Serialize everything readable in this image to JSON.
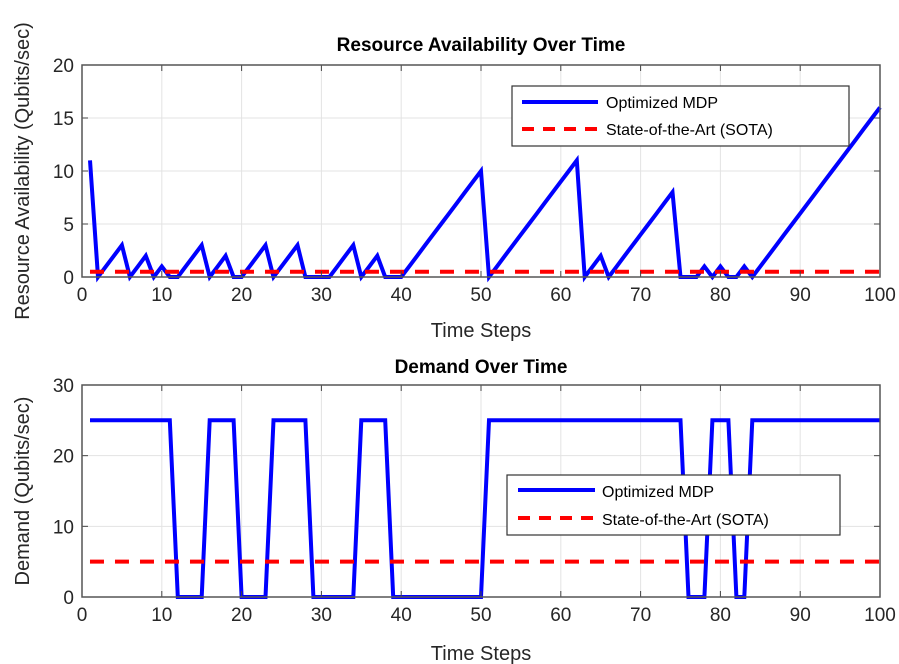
{
  "chart_data": [
    {
      "type": "line",
      "title": "Resource Availability Over Time",
      "xlabel": "Time Steps",
      "ylabel": "Resource Availability (Qubits/sec)",
      "xlim": [
        0,
        100
      ],
      "ylim": [
        0,
        20
      ],
      "xticks": [
        0,
        10,
        20,
        30,
        40,
        50,
        60,
        70,
        80,
        90,
        100
      ],
      "yticks": [
        0,
        5,
        10,
        15,
        20
      ],
      "grid": true,
      "legend_placement": "top-right",
      "x": [
        1,
        2,
        3,
        4,
        5,
        6,
        7,
        8,
        9,
        10,
        11,
        12,
        13,
        14,
        15,
        16,
        17,
        18,
        19,
        20,
        21,
        22,
        23,
        24,
        25,
        26,
        27,
        28,
        29,
        30,
        31,
        32,
        33,
        34,
        35,
        36,
        37,
        38,
        39,
        40,
        41,
        42,
        43,
        44,
        45,
        46,
        47,
        48,
        49,
        50,
        51,
        52,
        53,
        54,
        55,
        56,
        57,
        58,
        59,
        60,
        61,
        62,
        63,
        64,
        65,
        66,
        67,
        68,
        69,
        70,
        71,
        72,
        73,
        74,
        75,
        76,
        77,
        78,
        79,
        80,
        81,
        82,
        83,
        84,
        85,
        86,
        87,
        88,
        89,
        90,
        91,
        92,
        93,
        94,
        95,
        96,
        97,
        98,
        99,
        100
      ],
      "series": [
        {
          "name": "Optimized MDP",
          "color": "#0000ff",
          "style": "solid",
          "values": [
            11,
            0,
            1,
            2,
            3,
            0,
            1,
            2,
            0,
            1,
            0,
            0,
            1,
            2,
            3,
            0,
            1,
            2,
            0,
            0,
            1,
            2,
            3,
            0,
            1,
            2,
            3,
            0,
            0,
            0,
            0,
            1,
            2,
            3,
            0,
            1,
            2,
            0,
            0,
            0,
            1,
            2,
            3,
            4,
            5,
            6,
            7,
            8,
            9,
            10,
            0,
            1,
            2,
            3,
            4,
            5,
            6,
            7,
            8,
            9,
            10,
            11,
            0,
            1,
            2,
            0,
            1,
            2,
            3,
            4,
            5,
            6,
            7,
            8,
            0,
            0,
            0,
            1,
            0,
            1,
            0,
            0,
            1,
            0,
            1,
            2,
            3,
            4,
            5,
            6,
            7,
            8,
            9,
            10,
            11,
            12,
            13,
            14,
            15,
            16
          ]
        },
        {
          "name": "State-of-the-Art (SOTA)",
          "color": "#ff0000",
          "style": "dashed",
          "constant": 0.5
        }
      ]
    },
    {
      "type": "line",
      "title": "Demand Over Time",
      "xlabel": "Time Steps",
      "ylabel": "Demand (Qubits/sec)",
      "xlim": [
        0,
        100
      ],
      "ylim": [
        0,
        30
      ],
      "xticks": [
        0,
        10,
        20,
        30,
        40,
        50,
        60,
        70,
        80,
        90,
        100
      ],
      "yticks": [
        0,
        10,
        20,
        30
      ],
      "grid": true,
      "legend_placement": "center-right",
      "x": [
        1,
        2,
        3,
        4,
        5,
        6,
        7,
        8,
        9,
        10,
        11,
        12,
        13,
        14,
        15,
        16,
        17,
        18,
        19,
        20,
        21,
        22,
        23,
        24,
        25,
        26,
        27,
        28,
        29,
        30,
        31,
        32,
        33,
        34,
        35,
        36,
        37,
        38,
        39,
        40,
        41,
        42,
        43,
        44,
        45,
        46,
        47,
        48,
        49,
        50,
        51,
        52,
        53,
        54,
        55,
        56,
        57,
        58,
        59,
        60,
        61,
        62,
        63,
        64,
        65,
        66,
        67,
        68,
        69,
        70,
        71,
        72,
        73,
        74,
        75,
        76,
        77,
        78,
        79,
        80,
        81,
        82,
        83,
        84,
        85,
        86,
        87,
        88,
        89,
        90,
        91,
        92,
        93,
        94,
        95,
        96,
        97,
        98,
        99,
        100
      ],
      "series": [
        {
          "name": "Optimized MDP",
          "color": "#0000ff",
          "style": "solid",
          "values": [
            25,
            25,
            25,
            25,
            25,
            25,
            25,
            25,
            25,
            25,
            25,
            0,
            0,
            0,
            0,
            25,
            25,
            25,
            25,
            0,
            0,
            0,
            0,
            25,
            25,
            25,
            25,
            25,
            0,
            0,
            0,
            0,
            0,
            0,
            25,
            25,
            25,
            25,
            0,
            0,
            0,
            0,
            0,
            0,
            0,
            0,
            0,
            0,
            0,
            0,
            25,
            25,
            25,
            25,
            25,
            25,
            25,
            25,
            25,
            25,
            25,
            25,
            25,
            25,
            25,
            25,
            25,
            25,
            25,
            25,
            25,
            25,
            25,
            25,
            25,
            0,
            0,
            0,
            25,
            25,
            25,
            0,
            0,
            25,
            25,
            25,
            25,
            25,
            25,
            25,
            25,
            25,
            25,
            25,
            25,
            25,
            25,
            25,
            25,
            25
          ]
        },
        {
          "name": "State-of-the-Art (SOTA)",
          "color": "#ff0000",
          "style": "dashed",
          "constant": 5
        }
      ]
    }
  ]
}
